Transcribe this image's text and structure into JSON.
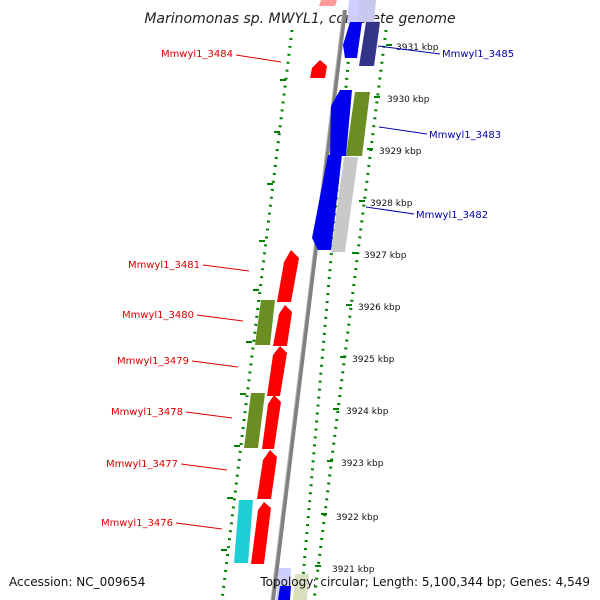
{
  "title": "Marinomonas sp. MWYL1, complete genome",
  "footer": {
    "accession": "Accession: NC_009654",
    "topology": "Topology: circular; Length: 5,100,344 bp; Genes: 4,549"
  },
  "colors": {
    "reverse_label": "#dd0000",
    "forward_label": "#0000aa",
    "red": "#ff0000",
    "blue": "#0000ee",
    "olive": "#6b8e23",
    "gray": "#c8c8c8",
    "cyan": "#1ccfd4",
    "navy": "#333388",
    "track": "#008000"
  },
  "ticks": [
    {
      "label": "3931 kbp"
    },
    {
      "label": "3930 kbp"
    },
    {
      "label": "3929 kbp"
    },
    {
      "label": "3928 kbp"
    },
    {
      "label": "3927 kbp"
    },
    {
      "label": "3926 kbp"
    },
    {
      "label": "3925 kbp"
    },
    {
      "label": "3924 kbp"
    },
    {
      "label": "3923 kbp"
    },
    {
      "label": "3922 kbp"
    },
    {
      "label": "3921 kbp"
    }
  ],
  "gene_labels": [
    {
      "name": "Mmwyl1_3485",
      "strand": "forward"
    },
    {
      "name": "Mmwyl1_3484",
      "strand": "reverse"
    },
    {
      "name": "Mmwyl1_3483",
      "strand": "forward"
    },
    {
      "name": "Mmwyl1_3482",
      "strand": "forward"
    },
    {
      "name": "Mmwyl1_3481",
      "strand": "reverse"
    },
    {
      "name": "Mmwyl1_3480",
      "strand": "reverse"
    },
    {
      "name": "Mmwyl1_3479",
      "strand": "reverse"
    },
    {
      "name": "Mmwyl1_3478",
      "strand": "reverse"
    },
    {
      "name": "Mmwyl1_3477",
      "strand": "reverse"
    },
    {
      "name": "Mmwyl1_3476",
      "strand": "reverse"
    }
  ]
}
